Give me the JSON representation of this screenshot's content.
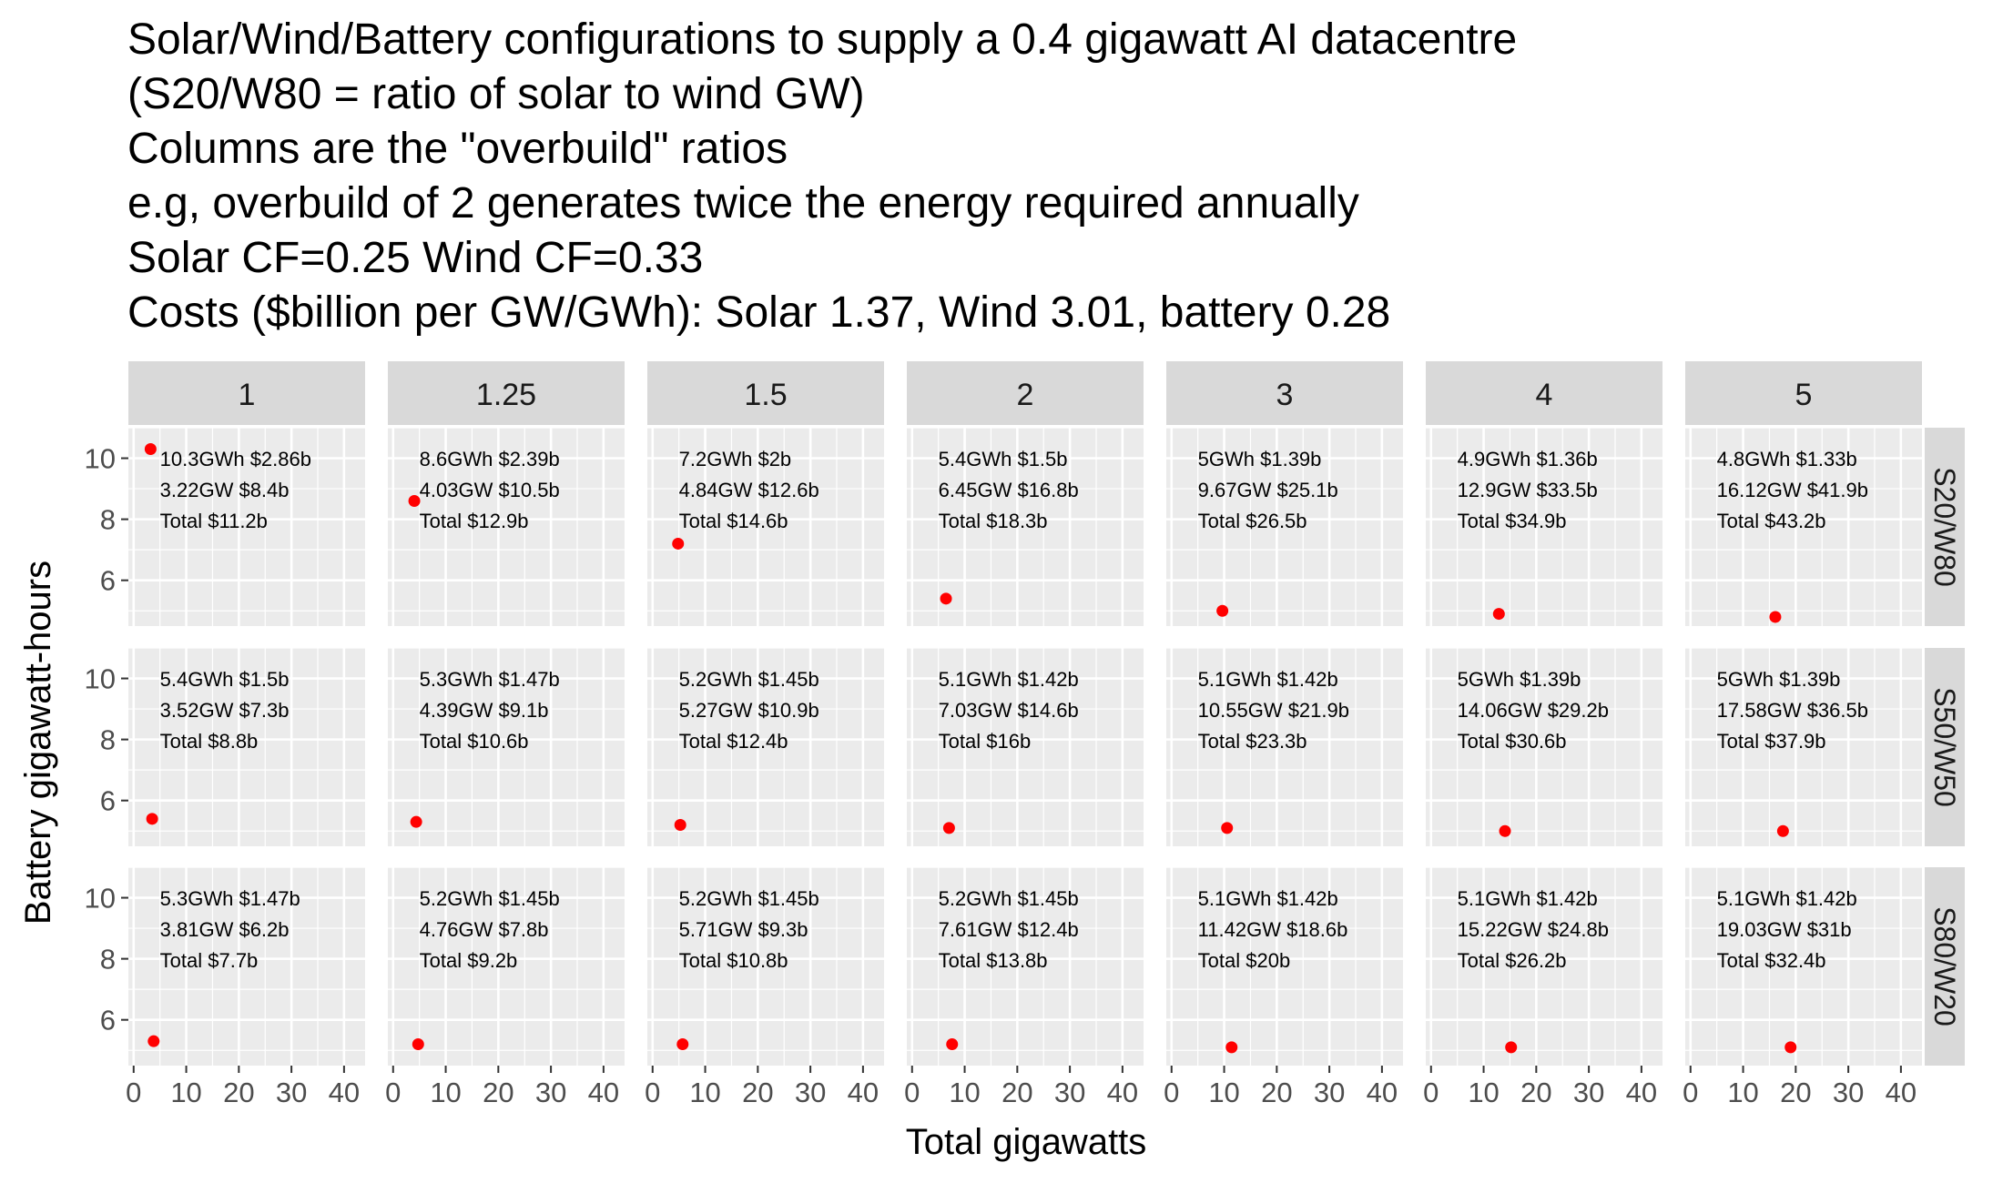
{
  "title_lines": [
    "Solar/Wind/Battery configurations to supply a 0.4 gigawatt AI datacentre",
    "(S20/W80 = ratio of solar to wind GW)",
    "Columns are the \"overbuild\" ratios",
    "e.g, overbuild of 2 generates twice the energy required annually",
    "Solar CF=0.25 Wind CF=0.33",
    "Costs ($billion per GW/GWh): Solar 1.37, Wind 3.01, battery 0.28"
  ],
  "chart_data": {
    "type": "scatter",
    "xlabel": "Total gigawatts",
    "ylabel": "Battery gigawatt-hours",
    "xlim": [
      -1,
      44
    ],
    "ylim": [
      4.5,
      11
    ],
    "x_ticks": [
      0,
      10,
      20,
      30,
      40
    ],
    "y_ticks": [
      6,
      8,
      10
    ],
    "grid": true,
    "point_color": "#ff0000",
    "columns": [
      "1",
      "1.25",
      "1.5",
      "2",
      "3",
      "4",
      "5"
    ],
    "rows": [
      "S20/W80",
      "S50/W50",
      "S80/W20"
    ],
    "panels": [
      [
        {
          "x": 3.22,
          "y": 10.3,
          "labels": [
            "10.3GWh $2.86b",
            "3.22GW $8.4b",
            "Total $11.2b"
          ]
        },
        {
          "x": 4.03,
          "y": 8.6,
          "labels": [
            "8.6GWh $2.39b",
            "4.03GW $10.5b",
            "Total $12.9b"
          ]
        },
        {
          "x": 4.84,
          "y": 7.2,
          "labels": [
            "7.2GWh $2b",
            "4.84GW $12.6b",
            "Total $14.6b"
          ]
        },
        {
          "x": 6.45,
          "y": 5.4,
          "labels": [
            "5.4GWh $1.5b",
            "6.45GW $16.8b",
            "Total $18.3b"
          ]
        },
        {
          "x": 9.67,
          "y": 5.0,
          "labels": [
            "5GWh $1.39b",
            "9.67GW $25.1b",
            "Total $26.5b"
          ]
        },
        {
          "x": 12.9,
          "y": 4.9,
          "labels": [
            "4.9GWh $1.36b",
            "12.9GW $33.5b",
            "Total $34.9b"
          ]
        },
        {
          "x": 16.12,
          "y": 4.8,
          "labels": [
            "4.8GWh $1.33b",
            "16.12GW $41.9b",
            "Total $43.2b"
          ]
        }
      ],
      [
        {
          "x": 3.52,
          "y": 5.4,
          "labels": [
            "5.4GWh $1.5b",
            "3.52GW $7.3b",
            "Total $8.8b"
          ]
        },
        {
          "x": 4.39,
          "y": 5.3,
          "labels": [
            "5.3GWh $1.47b",
            "4.39GW $9.1b",
            "Total $10.6b"
          ]
        },
        {
          "x": 5.27,
          "y": 5.2,
          "labels": [
            "5.2GWh $1.45b",
            "5.27GW $10.9b",
            "Total $12.4b"
          ]
        },
        {
          "x": 7.03,
          "y": 5.1,
          "labels": [
            "5.1GWh $1.42b",
            "7.03GW $14.6b",
            "Total $16b"
          ]
        },
        {
          "x": 10.55,
          "y": 5.1,
          "labels": [
            "5.1GWh $1.42b",
            "10.55GW $21.9b",
            "Total $23.3b"
          ]
        },
        {
          "x": 14.06,
          "y": 5.0,
          "labels": [
            "5GWh $1.39b",
            "14.06GW $29.2b",
            "Total $30.6b"
          ]
        },
        {
          "x": 17.58,
          "y": 5.0,
          "labels": [
            "5GWh $1.39b",
            "17.58GW $36.5b",
            "Total $37.9b"
          ]
        }
      ],
      [
        {
          "x": 3.81,
          "y": 5.3,
          "labels": [
            "5.3GWh $1.47b",
            "3.81GW $6.2b",
            "Total $7.7b"
          ]
        },
        {
          "x": 4.76,
          "y": 5.2,
          "labels": [
            "5.2GWh $1.45b",
            "4.76GW $7.8b",
            "Total $9.2b"
          ]
        },
        {
          "x": 5.71,
          "y": 5.2,
          "labels": [
            "5.2GWh $1.45b",
            "5.71GW $9.3b",
            "Total $10.8b"
          ]
        },
        {
          "x": 7.61,
          "y": 5.2,
          "labels": [
            "5.2GWh $1.45b",
            "7.61GW $12.4b",
            "Total $13.8b"
          ]
        },
        {
          "x": 11.42,
          "y": 5.1,
          "labels": [
            "5.1GWh $1.42b",
            "11.42GW $18.6b",
            "Total $20b"
          ]
        },
        {
          "x": 15.22,
          "y": 5.1,
          "labels": [
            "5.1GWh $1.42b",
            "15.22GW $24.8b",
            "Total $26.2b"
          ]
        },
        {
          "x": 19.03,
          "y": 5.1,
          "labels": [
            "5.1GWh $1.42b",
            "19.03GW $31b",
            "Total $32.4b"
          ]
        }
      ]
    ]
  }
}
